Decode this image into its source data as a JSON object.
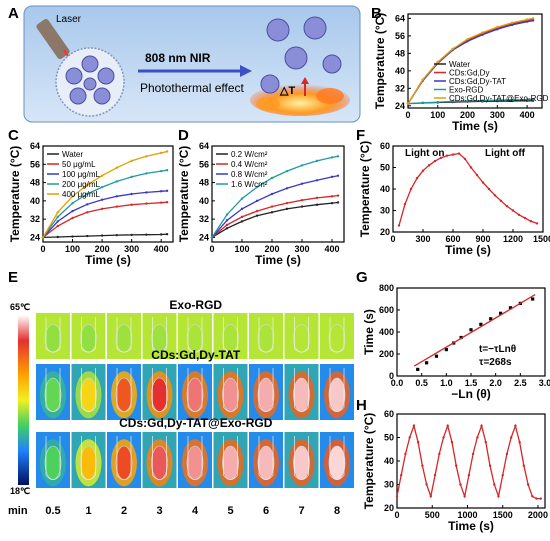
{
  "panel_labels": [
    "A",
    "B",
    "C",
    "D",
    "E",
    "F",
    "G",
    "H"
  ],
  "schematic": {
    "laser_label": "Laser",
    "nir_label": "808 nm NIR",
    "effect_label": "Photothermal effect",
    "delta_label": "△T"
  },
  "colors": {
    "Water": "#222222",
    "CDs:Gd,Dy": "#d62728",
    "CDs:Gd,Dy-TAT": "#3838c8",
    "Exo-RGD": "#1f9aa0",
    "CDs:Gd,Dy-TAT@Exo-RGD": "#e0a000"
  },
  "thermal": {
    "temp_max_label": "65℃",
    "temp_min_label": "18℃",
    "min_label": "min",
    "rows": [
      {
        "title": "Exo-RGD",
        "levels": [
          0.42,
          0.42,
          0.43,
          0.43,
          0.44,
          0.44,
          0.44,
          0.45,
          0.45
        ]
      },
      {
        "title": "CDs:Gd,Dy-TAT",
        "levels": [
          0.38,
          0.55,
          0.78,
          0.85,
          0.9,
          0.92,
          0.94,
          0.95,
          0.96
        ]
      },
      {
        "title": "CDs:Gd,Dy-TAT@Exo-RGD",
        "levels": [
          0.36,
          0.6,
          0.8,
          0.88,
          0.92,
          0.94,
          0.95,
          0.96,
          0.97
        ]
      }
    ],
    "time_labels": [
      "0.5",
      "1",
      "2",
      "3",
      "4",
      "5",
      "6",
      "7",
      "8"
    ]
  },
  "chart_data": [
    {
      "panel": "B",
      "type": "line",
      "xlabel": "Time (s)",
      "ylabel": "Temperature (°C)",
      "xlim": [
        0,
        450
      ],
      "ylim": [
        23,
        66
      ],
      "xticks": [
        0,
        100,
        200,
        300,
        400
      ],
      "yticks": [
        24,
        32,
        40,
        48,
        56,
        64
      ],
      "legend_position": "bottom-right",
      "series": [
        {
          "name": "Water",
          "x": [
            0,
            50,
            100,
            150,
            200,
            250,
            300,
            350,
            400,
            420
          ],
          "y": [
            25,
            25.3,
            25.5,
            25.7,
            25.9,
            26,
            26.1,
            26.2,
            26.3,
            26.3
          ]
        },
        {
          "name": "CDs:Gd,Dy",
          "x": [
            0,
            50,
            100,
            150,
            200,
            250,
            300,
            350,
            400,
            420
          ],
          "y": [
            25,
            36,
            44,
            50,
            54,
            57,
            59.5,
            61.5,
            63,
            63.5
          ]
        },
        {
          "name": "CDs:Gd,Dy-TAT",
          "x": [
            0,
            50,
            100,
            150,
            200,
            250,
            300,
            350,
            400,
            420
          ],
          "y": [
            25,
            35.5,
            43.5,
            49.5,
            53.5,
            56.5,
            59,
            61,
            62.5,
            63
          ]
        },
        {
          "name": "Exo-RGD",
          "x": [
            0,
            50,
            100,
            150,
            200,
            250,
            300,
            350,
            400,
            420
          ],
          "y": [
            25,
            25.4,
            25.7,
            26,
            26.2,
            26.4,
            26.6,
            26.7,
            26.8,
            26.9
          ]
        },
        {
          "name": "CDs:Gd,Dy-TAT@Exo-RGD",
          "x": [
            0,
            50,
            100,
            150,
            200,
            250,
            300,
            350,
            400,
            420
          ],
          "y": [
            25,
            36,
            44,
            50,
            54.5,
            57.5,
            60,
            62,
            63.5,
            64
          ]
        }
      ]
    },
    {
      "panel": "C",
      "type": "line",
      "xlabel": "Time (s)",
      "ylabel": "Temperature (°C)",
      "xlim": [
        0,
        440
      ],
      "ylim": [
        22,
        64
      ],
      "xticks": [
        0,
        100,
        200,
        300,
        400
      ],
      "yticks": [
        24,
        32,
        40,
        48,
        56,
        64
      ],
      "legend_position": "top-left",
      "series": [
        {
          "name": "Water",
          "color": "#222222",
          "x": [
            0,
            50,
            100,
            150,
            200,
            250,
            300,
            350,
            400,
            420
          ],
          "y": [
            24,
            24.2,
            24.4,
            24.6,
            24.8,
            25,
            25.1,
            25.2,
            25.3,
            25.4
          ]
        },
        {
          "name": "50 μg/mL",
          "color": "#d62728",
          "x": [
            0,
            50,
            100,
            150,
            200,
            250,
            300,
            350,
            400,
            420
          ],
          "y": [
            24,
            29,
            32.5,
            35,
            36.5,
            37.5,
            38.3,
            38.8,
            39.2,
            39.4
          ]
        },
        {
          "name": "100 μg/mL",
          "color": "#3838c8",
          "x": [
            0,
            50,
            100,
            150,
            200,
            250,
            300,
            350,
            400,
            420
          ],
          "y": [
            24,
            31,
            35.5,
            38.5,
            40.5,
            42,
            43,
            43.7,
            44.2,
            44.4
          ]
        },
        {
          "name": "200 μg/mL",
          "color": "#1f9aa0",
          "x": [
            0,
            50,
            100,
            150,
            200,
            250,
            300,
            350,
            400,
            420
          ],
          "y": [
            24,
            33,
            39,
            43,
            46,
            48.5,
            50.5,
            52,
            53,
            53.4
          ]
        },
        {
          "name": "400 μg/mL",
          "color": "#e0a000",
          "x": [
            0,
            50,
            100,
            150,
            200,
            250,
            300,
            350,
            400,
            420
          ],
          "y": [
            24,
            35,
            42,
            47,
            51,
            54.5,
            57.5,
            59.5,
            61,
            61.6
          ]
        }
      ]
    },
    {
      "panel": "D",
      "type": "line",
      "xlabel": "Time (s)",
      "ylabel": "Temperature (°C)",
      "xlim": [
        0,
        440
      ],
      "ylim": [
        22,
        64
      ],
      "xticks": [
        0,
        100,
        200,
        300,
        400
      ],
      "yticks": [
        24,
        32,
        40,
        48,
        56,
        64
      ],
      "legend_position": "top-left",
      "series": [
        {
          "name": "0.2 W/cm²",
          "color": "#222222",
          "x": [
            0,
            50,
            100,
            150,
            200,
            250,
            300,
            350,
            400,
            420
          ],
          "y": [
            24,
            28,
            31,
            33.5,
            35,
            36.5,
            37.5,
            38.3,
            39,
            39.3
          ]
        },
        {
          "name": "0.4 W/cm²",
          "color": "#d62728",
          "x": [
            0,
            50,
            100,
            150,
            200,
            250,
            300,
            350,
            400,
            420
          ],
          "y": [
            24,
            29.5,
            33,
            35.5,
            37.5,
            39,
            40.3,
            41.3,
            42,
            42.3
          ]
        },
        {
          "name": "0.8 W/cm²",
          "color": "#3838c8",
          "x": [
            0,
            50,
            100,
            150,
            200,
            250,
            300,
            350,
            400,
            420
          ],
          "y": [
            24,
            31.5,
            36.5,
            40,
            43,
            45.5,
            47.5,
            49,
            50.5,
            51
          ]
        },
        {
          "name": "1.6 W/cm²",
          "color": "#1f9aa0",
          "x": [
            0,
            50,
            100,
            150,
            200,
            250,
            300,
            350,
            400,
            420
          ],
          "y": [
            24,
            34,
            41,
            46,
            50,
            53,
            55.5,
            57.5,
            59,
            59.5
          ]
        }
      ]
    },
    {
      "panel": "F",
      "type": "line",
      "xlabel": "Time (s)",
      "ylabel": "Temperature (°C)",
      "xlim": [
        0,
        1500
      ],
      "ylim": [
        20,
        60
      ],
      "xticks": [
        0,
        300,
        600,
        900,
        1200,
        1500
      ],
      "yticks": [
        20,
        30,
        40,
        50,
        60
      ],
      "annotations": [
        "Light on",
        "Light off"
      ],
      "series": [
        {
          "name": "",
          "color": "#d62728",
          "x": [
            60,
            120,
            180,
            240,
            300,
            360,
            420,
            480,
            540,
            600,
            660,
            720,
            780,
            840,
            900,
            960,
            1020,
            1080,
            1140,
            1200,
            1260,
            1320,
            1380,
            1440
          ],
          "y": [
            23,
            33,
            40,
            45,
            48.5,
            51,
            53,
            54.5,
            55.5,
            56,
            56.5,
            54,
            50,
            46.5,
            43,
            40,
            37,
            34.5,
            32,
            30,
            28,
            26.5,
            25,
            24
          ]
        }
      ]
    },
    {
      "panel": "G",
      "type": "scatter",
      "xlabel": "−Ln (θ)",
      "ylabel": "Time (s)",
      "xlim": [
        0,
        3.0
      ],
      "ylim": [
        0,
        800
      ],
      "xticks": [
        0.0,
        0.5,
        1.0,
        1.5,
        2.0,
        2.5,
        3.0
      ],
      "yticks": [
        0,
        200,
        400,
        600,
        800
      ],
      "annotations": [
        "t=−τLnθ",
        "τ=268s"
      ],
      "points": {
        "x": [
          0.42,
          0.6,
          0.8,
          1.0,
          1.15,
          1.3,
          1.5,
          1.7,
          1.9,
          2.1,
          2.3,
          2.5,
          2.75
        ],
        "y": [
          60,
          120,
          180,
          240,
          300,
          350,
          420,
          470,
          520,
          570,
          620,
          660,
          700
        ]
      },
      "fit": {
        "x": [
          0.35,
          2.8
        ],
        "y": [
          90,
          740
        ]
      }
    },
    {
      "panel": "H",
      "type": "line",
      "xlabel": "Time (s)",
      "ylabel": "Temperature (°C)",
      "xlim": [
        0,
        2100
      ],
      "ylim": [
        20,
        60
      ],
      "xticks": [
        0,
        500,
        1000,
        1500,
        2000
      ],
      "yticks": [
        20,
        30,
        40,
        50,
        60
      ],
      "series": [
        {
          "name": "",
          "color": "#d62728",
          "x": [
            0,
            60,
            120,
            180,
            240,
            300,
            360,
            420,
            480,
            540,
            600,
            660,
            720,
            780,
            840,
            900,
            960,
            1020,
            1080,
            1140,
            1200,
            1260,
            1320,
            1380,
            1440,
            1500,
            1560,
            1620,
            1680,
            1740,
            1800,
            1860,
            1920,
            1980,
            2040
          ],
          "y": [
            25,
            34,
            43,
            50,
            55,
            48,
            38,
            30,
            25,
            34,
            43,
            50,
            55,
            48,
            38,
            30,
            25,
            34,
            43,
            50,
            55,
            48,
            38,
            30,
            25,
            34,
            43,
            50,
            55,
            48,
            38,
            30,
            25,
            24,
            24
          ]
        }
      ]
    }
  ]
}
